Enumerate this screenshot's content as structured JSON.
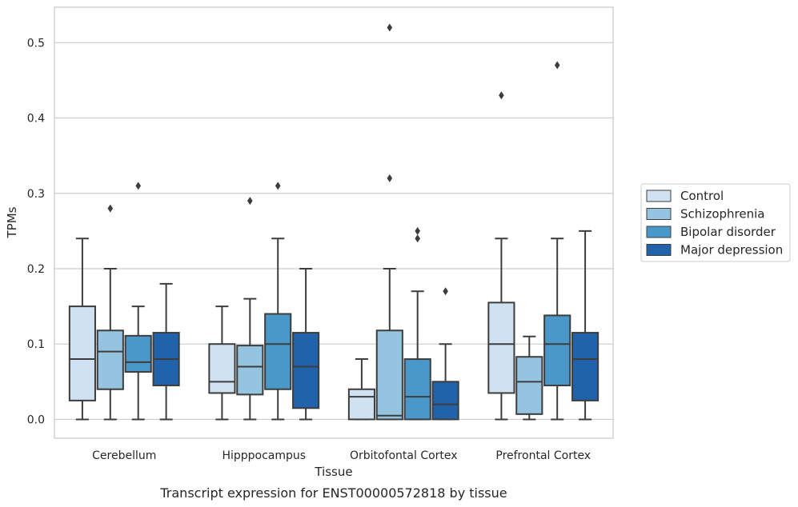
{
  "caption": "Transcript expression for ENST00000572818 by tissue",
  "chart_data": {
    "type": "box",
    "xlabel": "Tissue",
    "ylabel": "TPMs",
    "ylim": [
      -0.025,
      0.547
    ],
    "yticks": [
      0.0,
      0.1,
      0.2,
      0.3,
      0.4,
      0.5
    ],
    "ytick_labels": [
      "0.0",
      "0.1",
      "0.2",
      "0.3",
      "0.4",
      "0.5"
    ],
    "grid": "horizontal",
    "legend_position": "right-outside",
    "categories": [
      "Cerebellum",
      "Hipppocampus",
      "Orbitofontal Cortex",
      "Prefrontal Cortex"
    ],
    "series": [
      {
        "name": "Control",
        "color": "#d0e1f2",
        "boxes": [
          {
            "whislo": 0.0,
            "q1": 0.025,
            "med": 0.08,
            "q3": 0.15,
            "whishi": 0.24,
            "fliers": []
          },
          {
            "whislo": 0.0,
            "q1": 0.035,
            "med": 0.05,
            "q3": 0.1,
            "whishi": 0.15,
            "fliers": []
          },
          {
            "whislo": 0.0,
            "q1": 0.0,
            "med": 0.03,
            "q3": 0.04,
            "whishi": 0.08,
            "fliers": []
          },
          {
            "whislo": 0.0,
            "q1": 0.035,
            "med": 0.1,
            "q3": 0.155,
            "whishi": 0.24,
            "fliers": [
              0.43
            ]
          }
        ]
      },
      {
        "name": "Schizophrenia",
        "color": "#94c4df",
        "boxes": [
          {
            "whislo": 0.0,
            "q1": 0.04,
            "med": 0.09,
            "q3": 0.118,
            "whishi": 0.2,
            "fliers": [
              0.28
            ]
          },
          {
            "whislo": 0.0,
            "q1": 0.033,
            "med": 0.07,
            "q3": 0.098,
            "whishi": 0.16,
            "fliers": [
              0.29
            ]
          },
          {
            "whislo": 0.0,
            "q1": 0.0,
            "med": 0.005,
            "q3": 0.118,
            "whishi": 0.2,
            "fliers": [
              0.52,
              0.32
            ]
          },
          {
            "whislo": 0.0,
            "q1": 0.007,
            "med": 0.05,
            "q3": 0.083,
            "whishi": 0.11,
            "fliers": []
          }
        ]
      },
      {
        "name": "Bipolar disorder",
        "color": "#4a98c9",
        "boxes": [
          {
            "whislo": 0.0,
            "q1": 0.063,
            "med": 0.076,
            "q3": 0.111,
            "whishi": 0.15,
            "fliers": [
              0.31
            ]
          },
          {
            "whislo": 0.0,
            "q1": 0.04,
            "med": 0.1,
            "q3": 0.14,
            "whishi": 0.24,
            "fliers": [
              0.31
            ]
          },
          {
            "whislo": 0.0,
            "q1": 0.0,
            "med": 0.03,
            "q3": 0.08,
            "whishi": 0.17,
            "fliers": [
              0.25,
              0.24
            ]
          },
          {
            "whislo": 0.0,
            "q1": 0.045,
            "med": 0.1,
            "q3": 0.138,
            "whishi": 0.24,
            "fliers": [
              0.47
            ]
          }
        ]
      },
      {
        "name": "Major depression",
        "color": "#2163aa",
        "boxes": [
          {
            "whislo": 0.0,
            "q1": 0.045,
            "med": 0.08,
            "q3": 0.115,
            "whishi": 0.18,
            "fliers": []
          },
          {
            "whislo": 0.0,
            "q1": 0.015,
            "med": 0.07,
            "q3": 0.115,
            "whishi": 0.2,
            "fliers": []
          },
          {
            "whislo": 0.0,
            "q1": 0.0,
            "med": 0.02,
            "q3": 0.05,
            "whishi": 0.1,
            "fliers": [
              0.17
            ]
          },
          {
            "whislo": 0.0,
            "q1": 0.025,
            "med": 0.08,
            "q3": 0.115,
            "whishi": 0.25,
            "fliers": []
          }
        ]
      }
    ]
  }
}
